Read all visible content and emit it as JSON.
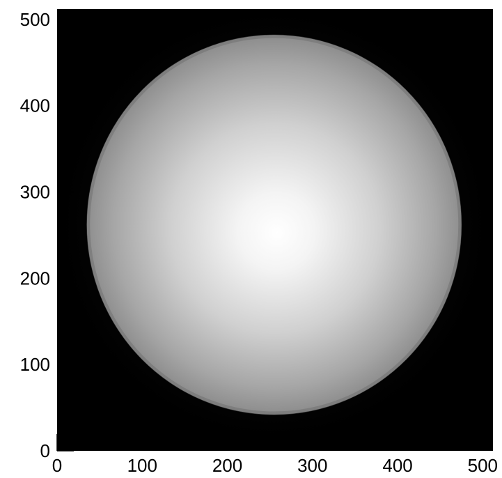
{
  "chart_data": {
    "type": "heatmap",
    "title": "",
    "xlabel": "",
    "ylabel": "",
    "xlim": [
      0,
      512
    ],
    "ylim": [
      0,
      512
    ],
    "x_ticks": [
      0,
      100,
      200,
      300,
      400,
      500
    ],
    "y_ticks": [
      0,
      100,
      200,
      300,
      400,
      500
    ],
    "x_tick_labels": [
      "0",
      "100",
      "200",
      "300",
      "400",
      "500"
    ],
    "y_tick_labels": [
      "0",
      "100",
      "200",
      "300",
      "400",
      "500"
    ],
    "colormap": "grayscale",
    "grid": false,
    "features": {
      "disk": {
        "center": [
          255,
          262
        ],
        "radius": 220,
        "center_intensity": 1.0,
        "edge_intensity": 0.55
      },
      "masked_corners": [
        {
          "x_range": [
            0,
            145
          ],
          "y_range": [
            475,
            512
          ]
        },
        {
          "x_range": [
            360,
            512
          ],
          "y_range": [
            475,
            512
          ]
        }
      ]
    }
  }
}
